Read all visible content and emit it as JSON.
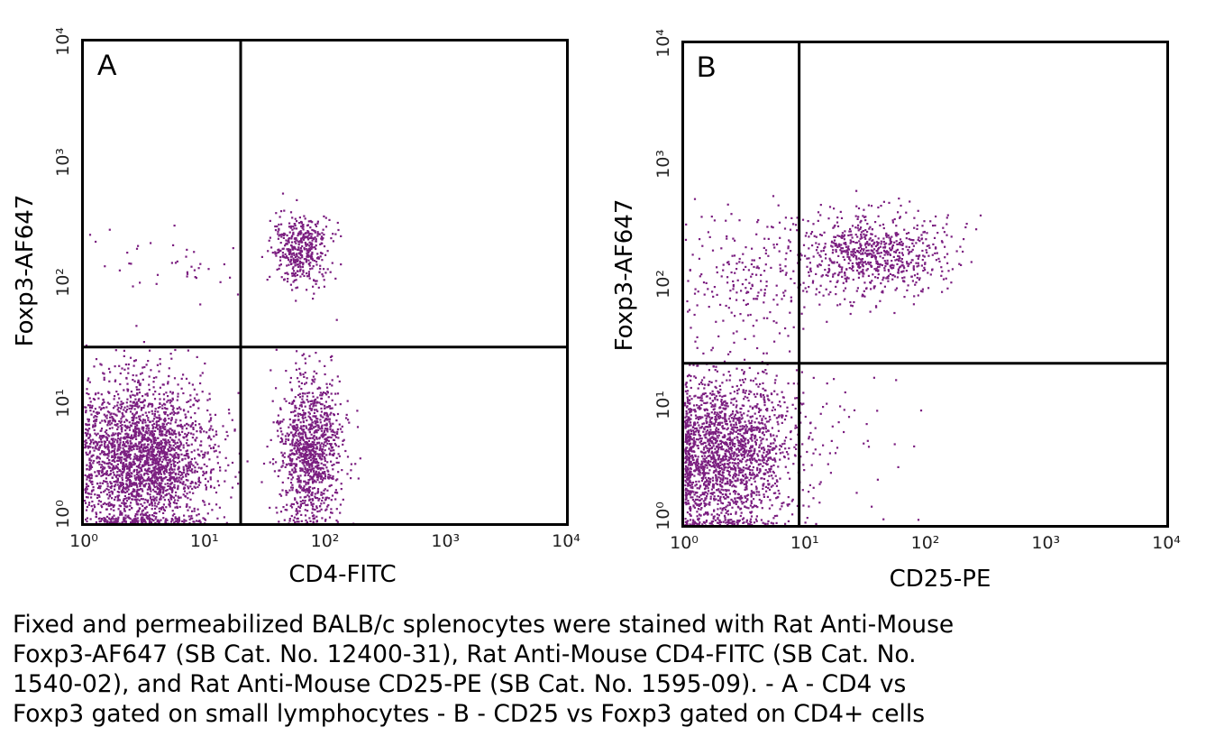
{
  "chart_data": [
    {
      "type": "scatter",
      "panel": "A",
      "xlabel": "CD4-FITC",
      "ylabel": "Foxp3-AF647",
      "xscale": "log",
      "yscale": "log",
      "xlim": [
        1,
        10000
      ],
      "ylim": [
        1,
        10000
      ],
      "xticks": [
        "10⁰",
        "10¹",
        "10²",
        "10³",
        "10⁴"
      ],
      "yticks": [
        "10⁰",
        "10¹",
        "10²",
        "10³",
        "10⁴"
      ],
      "gates": {
        "x": 20,
        "y": 29
      },
      "grid": false,
      "point_color": "#7b1e80",
      "populations": [
        {
          "label": "CD4- Foxp3-",
          "center": [
            3,
            3.5
          ],
          "spread_decades": [
            0.28,
            0.33
          ],
          "count": 2600
        },
        {
          "label": "CD4+ Foxp3-",
          "center": [
            75,
            4
          ],
          "spread_decades": [
            0.13,
            0.3
          ],
          "count": 1100
        },
        {
          "label": "CD4+ Foxp3+",
          "center": [
            60,
            190
          ],
          "spread_decades": [
            0.12,
            0.15
          ],
          "count": 450
        },
        {
          "label": "CD4- Foxp3+",
          "center": [
            5,
            150
          ],
          "spread_decades": [
            0.35,
            0.15
          ],
          "count": 40
        }
      ]
    },
    {
      "type": "scatter",
      "panel": "B",
      "xlabel": "CD25-PE",
      "ylabel": "Foxp3-AF647",
      "xscale": "log",
      "yscale": "log",
      "xlim": [
        1,
        10000
      ],
      "ylim": [
        1,
        10000
      ],
      "xticks": [
        "10⁰",
        "10¹",
        "10²",
        "10³",
        "10⁴"
      ],
      "yticks": [
        "10⁰",
        "10¹",
        "10²",
        "10³",
        "10⁴"
      ],
      "gates": {
        "x": 9,
        "y": 22
      },
      "grid": false,
      "point_color": "#7b1e80",
      "populations": [
        {
          "label": "CD25- Foxp3-",
          "center": [
            2,
            4
          ],
          "spread_decades": [
            0.3,
            0.33
          ],
          "count": 2200
        },
        {
          "label": "CD25+ Foxp3+",
          "center": [
            35,
            180
          ],
          "spread_decades": [
            0.3,
            0.17
          ],
          "count": 750
        },
        {
          "label": "CD25- Foxp3+",
          "center": [
            3.5,
            120
          ],
          "spread_decades": [
            0.3,
            0.25
          ],
          "count": 220
        },
        {
          "label": "CD25+ Foxp3-",
          "center": [
            20,
            5
          ],
          "spread_decades": [
            0.35,
            0.35
          ],
          "count": 40
        }
      ]
    }
  ],
  "caption": [
    "Fixed and permeabilized BALB/c splenocytes were stained with Rat Anti-Mouse",
    "Foxp3-AF647 (SB Cat. No. 12400-31), Rat Anti-Mouse CD4-FITC (SB Cat. No.",
    "1540-02), and Rat Anti-Mouse CD25-PE (SB Cat. No. 1595-09). - A - CD4 vs",
    "Foxp3 gated on small lymphocytes - B - CD25 vs Foxp3 gated on CD4+ cells"
  ]
}
